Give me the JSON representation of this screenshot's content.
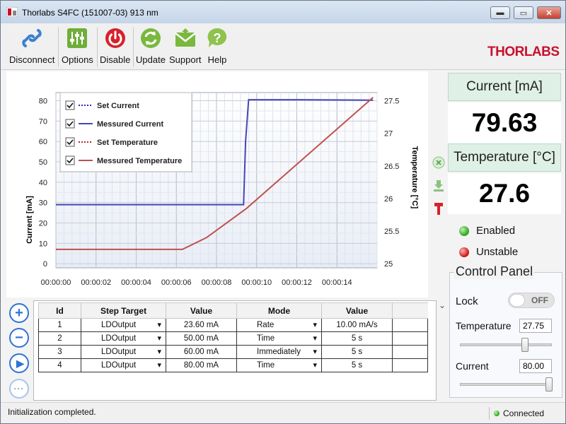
{
  "window": {
    "title": "Thorlabs S4FC (151007-03) 913 nm"
  },
  "brand": "THORLABS",
  "toolbar": {
    "items": [
      {
        "label": "Disconnect",
        "icon": "link-icon"
      },
      {
        "label": "Options",
        "icon": "sliders-icon"
      },
      {
        "label": "Disable",
        "icon": "power-icon"
      },
      {
        "label": "Update",
        "icon": "refresh-icon"
      },
      {
        "label": "Support",
        "icon": "envelope-icon"
      },
      {
        "label": "Help",
        "icon": "help-icon"
      }
    ]
  },
  "readout": {
    "current_label": "Current [mA]",
    "current_value": "79.63",
    "temperature_label": "Temperature [°C]",
    "temperature_value": "27.6",
    "status_enabled": "Enabled",
    "status_unstable": "Unstable"
  },
  "control_panel": {
    "title": "Control Panel",
    "lock_label": "Lock",
    "lock_state": "OFF",
    "temperature_label": "Temperature",
    "temperature_value": "27.75",
    "temperature_slider_fraction": 0.72,
    "current_label": "Current",
    "current_value": "80.00",
    "current_slider_fraction": 1.0
  },
  "table": {
    "headers": [
      "Id",
      "Step Target",
      "Value",
      "Mode",
      "Value"
    ],
    "rows": [
      {
        "id": "1",
        "target": "LDOutput",
        "value": "23.60 mA",
        "mode": "Rate",
        "value2": "10.00 mA/s"
      },
      {
        "id": "2",
        "target": "LDOutput",
        "value": "50.00 mA",
        "mode": "Time",
        "value2": "5 s"
      },
      {
        "id": "3",
        "target": "LDOutput",
        "value": "60.00 mA",
        "mode": "Immediately",
        "value2": "5 s"
      },
      {
        "id": "4",
        "target": "LDOutput",
        "value": "80.00 mA",
        "mode": "Time",
        "value2": "5 s"
      }
    ]
  },
  "statusbar": {
    "message": "Initialization completed.",
    "connection": "Connected"
  },
  "chart_data": {
    "type": "line",
    "xlabel": "",
    "ylabel": "Current [mA]",
    "y2label": "Temperature [°C]",
    "x_ticks": [
      "00:00:00",
      "00:00:02",
      "00:00:04",
      "00:00:06",
      "00:00:08",
      "00:00:10",
      "00:00:12",
      "00:00:14"
    ],
    "xlim": [
      0,
      16
    ],
    "ylim": [
      0,
      80
    ],
    "y2lim": [
      25,
      27.5
    ],
    "y_ticks": [
      0,
      10,
      20,
      30,
      40,
      50,
      60,
      70,
      80
    ],
    "y2_ticks": [
      25,
      25.5,
      26,
      26.5,
      27,
      27.5
    ],
    "legend_position": "top-left",
    "grid": true,
    "series": [
      {
        "name": "Set Current",
        "axis": "y",
        "style": "dotted",
        "color": "#2b2bb0",
        "x": [],
        "y": []
      },
      {
        "name": "Messured Current",
        "axis": "y",
        "style": "solid",
        "color": "#4646b8",
        "x": [
          0,
          9.35,
          9.45,
          9.6,
          12,
          15.8
        ],
        "y": [
          29,
          29,
          60,
          80.5,
          80.5,
          80.3
        ]
      },
      {
        "name": "Set Temperature",
        "axis": "y2",
        "style": "dotted",
        "color": "#b02b2b",
        "x": [],
        "y": []
      },
      {
        "name": "Messured Temperature",
        "axis": "y2",
        "style": "solid",
        "color": "#c0504d",
        "x": [
          0,
          6.3,
          7.5,
          9.5,
          15.8
        ],
        "y": [
          25.22,
          25.22,
          25.4,
          25.85,
          27.55
        ]
      }
    ]
  }
}
